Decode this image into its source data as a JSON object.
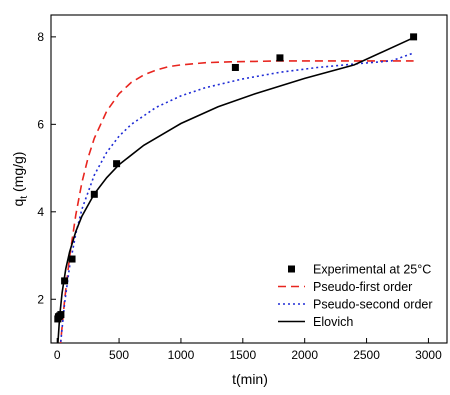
{
  "chart_data": {
    "type": "scatter",
    "title": "",
    "xlabel": "t(min)",
    "ylabel": "q",
    "ylabel_subscript": "t",
    "ylabel_unit": " (mg/g)",
    "xlim": [
      -50,
      3150
    ],
    "ylim": [
      1,
      8.5
    ],
    "xticks": [
      0,
      500,
      1000,
      1500,
      2000,
      2500,
      3000
    ],
    "yticks": [
      2,
      4,
      6,
      8
    ],
    "grid": false,
    "legend_position": "bottom-right",
    "series": [
      {
        "name": "Experimental at 25°C",
        "kind": "markers",
        "marker": "square",
        "color": "#000000",
        "x": [
          5,
          10,
          20,
          30,
          60,
          120,
          300,
          480,
          1440,
          1800,
          2880
        ],
        "y": [
          1.55,
          1.6,
          1.62,
          1.65,
          2.42,
          2.92,
          4.4,
          5.1,
          7.3,
          7.52,
          8.0
        ]
      },
      {
        "name": "Pseudo-first order",
        "kind": "line",
        "dash": "dashed",
        "color": "#e8251f",
        "x": [
          0,
          30,
          60,
          100,
          150,
          200,
          250,
          300,
          400,
          500,
          600,
          700,
          800,
          900,
          1000,
          1200,
          1400,
          1600,
          1800,
          2000,
          2300,
          2600,
          2880
        ],
        "y": [
          0.0,
          1.08,
          1.98,
          2.97,
          3.93,
          4.67,
          5.24,
          5.68,
          6.3,
          6.7,
          6.96,
          7.13,
          7.24,
          7.32,
          7.36,
          7.41,
          7.43,
          7.44,
          7.45,
          7.45,
          7.45,
          7.45,
          7.45
        ]
      },
      {
        "name": "Pseudo-second order",
        "kind": "line",
        "dash": "dotted",
        "color": "#1f2cd6",
        "x": [
          0,
          30,
          60,
          100,
          150,
          200,
          300,
          400,
          500,
          600,
          800,
          1000,
          1200,
          1500,
          1800,
          2100,
          2400,
          2700,
          2880
        ],
        "y": [
          0.0,
          1.06,
          1.91,
          2.75,
          3.5,
          4.06,
          4.84,
          5.36,
          5.73,
          6.0,
          6.39,
          6.65,
          6.84,
          7.04,
          7.19,
          7.3,
          7.38,
          7.45,
          7.63
        ]
      },
      {
        "name": "Elovich",
        "kind": "line",
        "dash": "solid",
        "color": "#000000",
        "x": [
          0,
          20,
          40,
          70,
          100,
          150,
          200,
          300,
          400,
          500,
          700,
          1000,
          1300,
          1600,
          2000,
          2400,
          2880
        ],
        "y": [
          0.75,
          1.62,
          2.15,
          2.7,
          3.08,
          3.55,
          3.9,
          4.41,
          4.78,
          5.08,
          5.52,
          6.02,
          6.4,
          6.7,
          7.05,
          7.36,
          7.98
        ]
      }
    ]
  }
}
